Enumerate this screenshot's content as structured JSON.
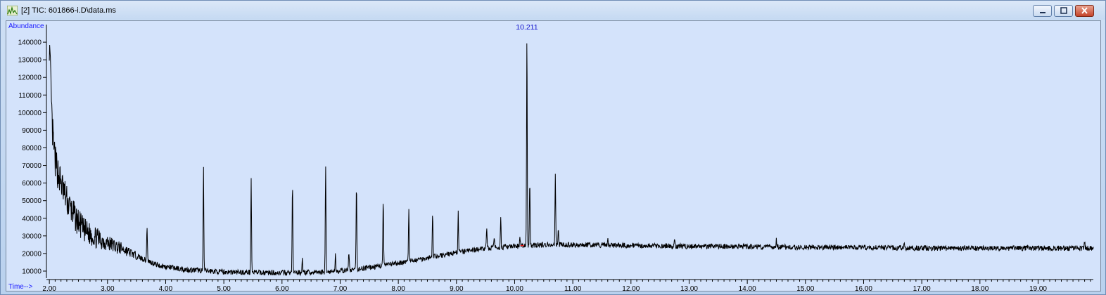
{
  "window": {
    "title": "[2] TIC: 601866-i.D\\data.ms",
    "buttons": [
      "minimize",
      "maximize",
      "close"
    ]
  },
  "colors": {
    "trace": "#000000",
    "annotation": "#1010cc",
    "axis_label": "#1a1aff",
    "background": "#d4e3fb",
    "baseline_marker": "#e01010"
  },
  "chart_data": {
    "type": "line",
    "title": "",
    "ylabel": "Abundance",
    "xlabel": "Time-->",
    "xlim": [
      1.95,
      19.95
    ],
    "ylim": [
      6000,
      150000
    ],
    "x_ticks": [
      2.0,
      3.0,
      4.0,
      5.0,
      6.0,
      7.0,
      8.0,
      9.0,
      10.0,
      11.0,
      12.0,
      13.0,
      14.0,
      15.0,
      16.0,
      17.0,
      18.0,
      19.0
    ],
    "x_tick_labels": [
      "2.00",
      "3.00",
      "4.00",
      "5.00",
      "6.00",
      "7.00",
      "8.00",
      "9.00",
      "10.00",
      "11.00",
      "12.00",
      "13.00",
      "14.00",
      "15.00",
      "16.00",
      "17.00",
      "18.00",
      "19.00"
    ],
    "y_ticks": [
      10000,
      20000,
      30000,
      40000,
      50000,
      60000,
      70000,
      80000,
      90000,
      100000,
      110000,
      120000,
      130000,
      140000
    ],
    "y_tick_labels": [
      "10000",
      "20000",
      "30000",
      "40000",
      "50000",
      "60000",
      "70000",
      "80000",
      "90000",
      "100000",
      "110000",
      "120000",
      "130000",
      "140000"
    ],
    "peak_annotations": [
      {
        "x": 10.211,
        "label": "10.211"
      }
    ],
    "baseline": [
      [
        2.0,
        140000
      ],
      [
        2.05,
        90000
      ],
      [
        2.1,
        72000
      ],
      [
        2.2,
        60000
      ],
      [
        2.3,
        50000
      ],
      [
        2.45,
        40000
      ],
      [
        2.6,
        33000
      ],
      [
        2.8,
        29000
      ],
      [
        3.0,
        26000
      ],
      [
        3.3,
        22000
      ],
      [
        3.6,
        17000
      ],
      [
        3.9,
        13000
      ],
      [
        4.3,
        11000
      ],
      [
        5.0,
        9500
      ],
      [
        6.0,
        9000
      ],
      [
        6.5,
        9200
      ],
      [
        7.0,
        10000
      ],
      [
        7.5,
        12000
      ],
      [
        8.0,
        14500
      ],
      [
        8.5,
        17500
      ],
      [
        9.0,
        20500
      ],
      [
        9.5,
        23000
      ],
      [
        10.0,
        24000
      ],
      [
        10.5,
        25000
      ],
      [
        11.0,
        25000
      ],
      [
        12.0,
        24500
      ],
      [
        13.0,
        24000
      ],
      [
        14.0,
        24000
      ],
      [
        15.0,
        23500
      ],
      [
        16.0,
        23500
      ],
      [
        17.0,
        23000
      ],
      [
        18.0,
        23000
      ],
      [
        19.0,
        23000
      ],
      [
        19.95,
        23000
      ]
    ],
    "peaks": [
      {
        "x": 3.68,
        "y": 36000
      },
      {
        "x": 4.65,
        "y": 68000
      },
      {
        "x": 5.47,
        "y": 63000
      },
      {
        "x": 6.18,
        "y": 61000
      },
      {
        "x": 6.35,
        "y": 18000
      },
      {
        "x": 6.75,
        "y": 68500
      },
      {
        "x": 6.92,
        "y": 20000
      },
      {
        "x": 7.15,
        "y": 21000
      },
      {
        "x": 7.28,
        "y": 59000
      },
      {
        "x": 7.74,
        "y": 51000
      },
      {
        "x": 8.18,
        "y": 45000
      },
      {
        "x": 8.59,
        "y": 44000
      },
      {
        "x": 9.03,
        "y": 43000
      },
      {
        "x": 9.52,
        "y": 34000
      },
      {
        "x": 9.65,
        "y": 29000
      },
      {
        "x": 9.76,
        "y": 41000
      },
      {
        "x": 10.09,
        "y": 30000
      },
      {
        "x": 10.211,
        "y": 146000
      },
      {
        "x": 10.26,
        "y": 60000
      },
      {
        "x": 10.7,
        "y": 65000
      },
      {
        "x": 10.75,
        "y": 33000
      },
      {
        "x": 11.6,
        "y": 28500
      },
      {
        "x": 12.75,
        "y": 28000
      },
      {
        "x": 14.5,
        "y": 27500
      },
      {
        "x": 16.7,
        "y": 27000
      },
      {
        "x": 19.8,
        "y": 26500
      }
    ],
    "noise_amplitude": 1500,
    "early_noise_amplitude": 9000
  }
}
